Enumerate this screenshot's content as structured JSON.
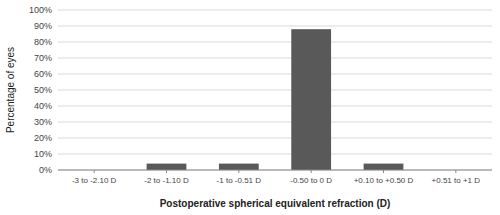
{
  "chart_data": {
    "type": "bar",
    "categories": [
      "-3 to -2.10 D",
      "-2 to -1.10 D",
      "-1 to -0.51 D",
      "-0.50 to 0 D",
      "+0.10 to +0.50 D",
      "+0.51 to +1 D"
    ],
    "values": [
      0,
      4,
      4,
      88,
      4,
      0
    ],
    "color": "#595959",
    "ylabel": "Percentage of eyes",
    "xlabel": "Postoperative spherical equivalent refraction (D)",
    "ylim": [
      0,
      100
    ],
    "yticks": [
      {
        "value": 0,
        "label": "0%"
      },
      {
        "value": 10,
        "label": "10%"
      },
      {
        "value": 20,
        "label": "20%"
      },
      {
        "value": 30,
        "label": "30%"
      },
      {
        "value": 40,
        "label": "40%"
      },
      {
        "value": 50,
        "label": "50%"
      },
      {
        "value": 60,
        "label": "60%"
      },
      {
        "value": 70,
        "label": "70%"
      },
      {
        "value": 80,
        "label": "80%"
      },
      {
        "value": 90,
        "label": "90%"
      },
      {
        "value": 100,
        "label": "100%"
      }
    ],
    "grid": true
  }
}
